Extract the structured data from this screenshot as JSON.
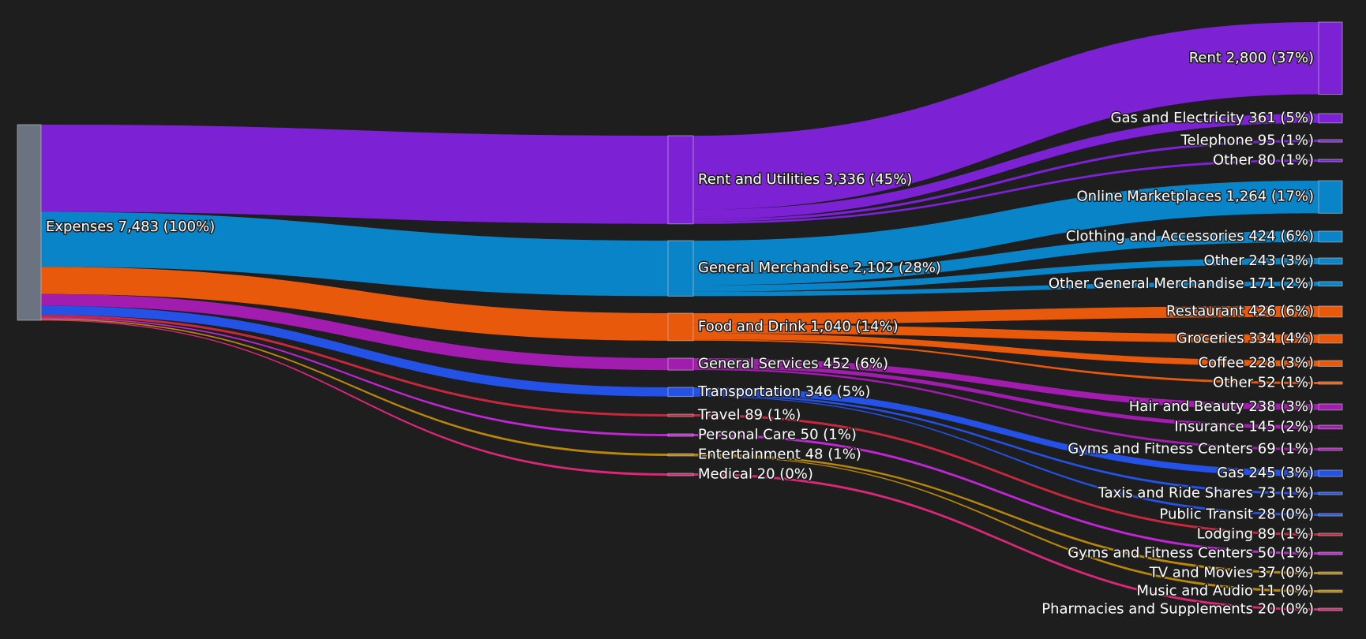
{
  "chart_data": {
    "type": "sankey",
    "root": {
      "id": "expenses",
      "label": "Expenses 7,483 (100%)",
      "value": 7483,
      "color": "#6b7280"
    },
    "categories": [
      {
        "id": "rent_utilities",
        "label": "Rent and Utilities 3,336 (45%)",
        "value": 3336,
        "color": "#7c22d4",
        "children": [
          {
            "label": "Rent 2,800 (37%)",
            "value": 2800
          },
          {
            "label": "Gas and Electricity 361 (5%)",
            "value": 361
          },
          {
            "label": "Telephone 95 (1%)",
            "value": 95
          },
          {
            "label": "Other 80 (1%)",
            "value": 80
          }
        ]
      },
      {
        "id": "general_merch",
        "label": "General Merchandise 2,102 (28%)",
        "value": 2102,
        "color": "#0a84c8",
        "children": [
          {
            "label": "Online Marketplaces 1,264 (17%)",
            "value": 1264
          },
          {
            "label": "Clothing and Accessories 424 (6%)",
            "value": 424
          },
          {
            "label": "Other 243 (3%)",
            "value": 243
          },
          {
            "label": "Other General Merchandise 171 (2%)",
            "value": 171
          }
        ]
      },
      {
        "id": "food_drink",
        "label": "Food and Drink 1,040 (14%)",
        "value": 1040,
        "color": "#e8590c",
        "children": [
          {
            "label": "Restaurant 426 (6%)",
            "value": 426
          },
          {
            "label": "Groceries 334 (4%)",
            "value": 334
          },
          {
            "label": "Coffee 228 (3%)",
            "value": 228
          },
          {
            "label": "Other 52 (1%)",
            "value": 52
          }
        ]
      },
      {
        "id": "general_services",
        "label": "General Services 452 (6%)",
        "value": 452,
        "color": "#a21caf",
        "children": [
          {
            "label": "Hair and Beauty 238 (3%)",
            "value": 238
          },
          {
            "label": "Insurance 145 (2%)",
            "value": 145
          },
          {
            "label": "Gyms and Fitness Centers 69 (1%)",
            "value": 69
          }
        ]
      },
      {
        "id": "transportation",
        "label": "Transportation 346 (5%)",
        "value": 346,
        "color": "#2451e6",
        "children": [
          {
            "label": "Gas 245 (3%)",
            "value": 245
          },
          {
            "label": "Taxis and Ride Shares 73 (1%)",
            "value": 73
          },
          {
            "label": "Public Transit 28 (0%)",
            "value": 28
          }
        ]
      },
      {
        "id": "travel",
        "label": "Travel 89 (1%)",
        "value": 89,
        "color": "#c8283e",
        "children": [
          {
            "label": "Lodging 89 (1%)",
            "value": 89
          }
        ]
      },
      {
        "id": "personal_care",
        "label": "Personal Care 50 (1%)",
        "value": 50,
        "color": "#c026d3",
        "children": [
          {
            "label": "Gyms and Fitness Centers 50 (1%)",
            "value": 50
          }
        ]
      },
      {
        "id": "entertainment",
        "label": "Entertainment 48 (1%)",
        "value": 48,
        "color": "#b8860b",
        "children": [
          {
            "label": "TV and Movies 37 (0%)",
            "value": 37
          },
          {
            "label": "Music and Audio 11 (0%)",
            "value": 11
          }
        ]
      },
      {
        "id": "medical",
        "label": "Medical 20 (0%)",
        "value": 20,
        "color": "#db2777",
        "children": [
          {
            "label": "Pharmacies and Supplements 20 (0%)",
            "value": 20
          }
        ]
      }
    ]
  }
}
